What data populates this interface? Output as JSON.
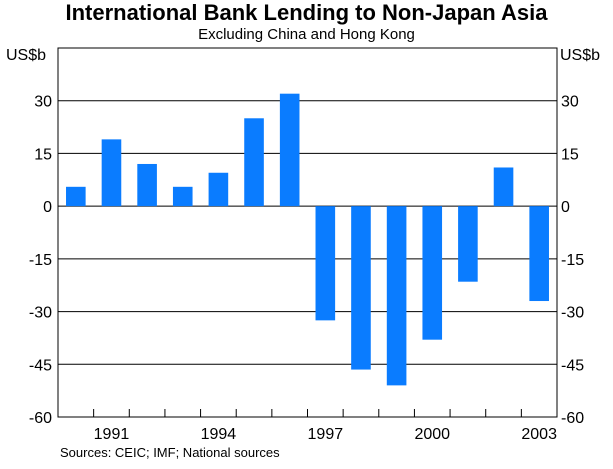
{
  "chart_data": {
    "type": "bar",
    "title": "International Bank Lending to Non-Japan Asia",
    "subtitle": "Excluding China and Hong Kong",
    "ylabel_left": "US$b",
    "ylabel_right": "US$b",
    "source": "Sources: CEIC; IMF; National sources",
    "categories": [
      "1990",
      "1991",
      "1992",
      "1993",
      "1994",
      "1995",
      "1996",
      "1997",
      "1998",
      "1999",
      "2000",
      "2001",
      "2002",
      "2003"
    ],
    "x_tick_labels": [
      "1991",
      "1994",
      "1997",
      "2000",
      "2003"
    ],
    "values": [
      5.5,
      19,
      12,
      5.5,
      9.5,
      25,
      32,
      -32.5,
      -46.5,
      -51,
      -38,
      -21.5,
      11,
      -27
    ],
    "ylim": [
      -60,
      45
    ],
    "yticks": [
      30,
      15,
      0,
      -15,
      -30,
      -45,
      -60
    ],
    "grid": true,
    "bar_color": "#0a7cff"
  }
}
